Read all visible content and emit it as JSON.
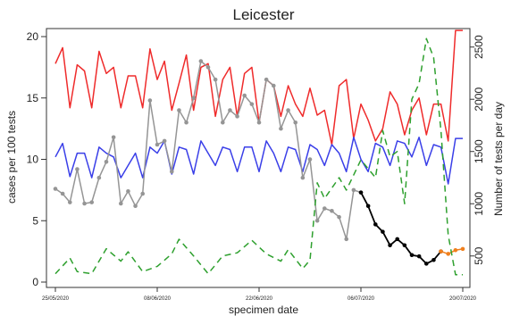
{
  "chart_data": {
    "type": "line",
    "title": "Leicester",
    "xlabel": "specimen date",
    "ylabel_left": "cases per 100 tests",
    "ylabel_right": "Number of tests per day",
    "x_ticks": [
      "25/05/2020",
      "08/06/2020",
      "22/06/2020",
      "06/07/2020",
      "20/07/2020"
    ],
    "x_tick_index": [
      0,
      14,
      28,
      42,
      56
    ],
    "ylim_left": [
      0,
      20
    ],
    "yticks_left": [
      0,
      5,
      10,
      15,
      20
    ],
    "ylim_right": [
      250,
      2600
    ],
    "yticks_right": [
      500,
      1000,
      1500,
      2000,
      2500
    ],
    "grid": false,
    "legend": "none",
    "series": [
      {
        "color": "#ef2b2b",
        "axis": "left",
        "style": "solid",
        "marker": false,
        "x": [
          0,
          1,
          2,
          3,
          4,
          5,
          6,
          7,
          8,
          9,
          10,
          11,
          12,
          13,
          14,
          15,
          16,
          17,
          18,
          19,
          20,
          21,
          22,
          23,
          24,
          25,
          26,
          27,
          28,
          29,
          30,
          31,
          32,
          33,
          34,
          35,
          36,
          37,
          38,
          39,
          40,
          41,
          42,
          43,
          44,
          45,
          46,
          47,
          48,
          49,
          50,
          51,
          52,
          53,
          54,
          55,
          56
        ],
        "y": [
          17.8,
          19.1,
          14.2,
          17.7,
          17.2,
          14.2,
          18.8,
          17.0,
          17.5,
          14.2,
          16.8,
          16.8,
          14.2,
          19.0,
          16.5,
          18.0,
          14.0,
          16.2,
          18.5,
          14.0,
          17.5,
          17.8,
          13.5,
          16.5,
          17.5,
          13.5,
          17.0,
          17.5,
          13.0,
          16.5,
          16.0,
          13.5,
          16.0,
          14.5,
          13.5,
          15.8,
          13.6,
          14.0,
          11.2,
          16.0,
          16.5,
          11.7,
          14.5,
          13.2,
          11.5,
          12.5,
          15.5,
          14.5,
          12.0,
          14.0,
          15.0,
          12.0,
          14.5,
          14.5,
          11.5,
          20.5,
          20.5
        ]
      },
      {
        "color": "#3a3fe8",
        "axis": "left",
        "style": "solid",
        "marker": false,
        "x": [
          0,
          1,
          2,
          3,
          4,
          5,
          6,
          7,
          8,
          9,
          10,
          11,
          12,
          13,
          14,
          15,
          16,
          17,
          18,
          19,
          20,
          21,
          22,
          23,
          24,
          25,
          26,
          27,
          28,
          29,
          30,
          31,
          32,
          33,
          34,
          35,
          36,
          37,
          38,
          39,
          40,
          41,
          42,
          43,
          44,
          45,
          46,
          47,
          48,
          49,
          50,
          51,
          52,
          53,
          54,
          55,
          56
        ],
        "y": [
          10.2,
          11.3,
          8.6,
          10.5,
          10.5,
          8.5,
          11.0,
          10.5,
          10.2,
          8.5,
          9.5,
          10.5,
          8.5,
          11.0,
          10.5,
          11.5,
          8.8,
          11.0,
          10.8,
          8.8,
          11.5,
          10.5,
          9.5,
          11.0,
          10.8,
          9.0,
          11.0,
          11.0,
          9.0,
          11.5,
          10.5,
          9.0,
          11.0,
          10.8,
          9.0,
          11.2,
          10.8,
          9.5,
          11.2,
          10.5,
          9.0,
          11.8,
          10.0,
          9.0,
          11.3,
          11.0,
          9.5,
          11.5,
          11.3,
          10.2,
          11.8,
          9.5,
          11.2,
          11.0,
          8.0,
          11.7,
          11.7
        ]
      },
      {
        "color": "#959595",
        "axis": "left",
        "style": "solid",
        "marker": true,
        "x": [
          0,
          1,
          2,
          3,
          4,
          5,
          6,
          7,
          8,
          9,
          10,
          11,
          12,
          13,
          14,
          15,
          16,
          17,
          18,
          19,
          20,
          21,
          22,
          23,
          24,
          25,
          26,
          27,
          28,
          29,
          30,
          31,
          32,
          33,
          34,
          35,
          36,
          37,
          38,
          39,
          40,
          41,
          42
        ],
        "y": [
          7.6,
          7.2,
          6.5,
          9.2,
          6.4,
          6.5,
          8.5,
          9.8,
          11.8,
          6.4,
          7.4,
          6.2,
          7.2,
          14.8,
          11.2,
          11.5,
          9.0,
          14.0,
          13.0,
          15.0,
          18.0,
          17.5,
          16.5,
          13.0,
          14.0,
          13.5,
          15.2,
          14.5,
          13.0,
          16.5,
          16.0,
          12.5,
          14.0,
          13.0,
          8.5,
          10.0,
          5.0,
          6.0,
          5.8,
          5.3,
          3.5,
          7.5,
          7.3
        ]
      },
      {
        "color": "#000000",
        "axis": "left",
        "style": "solid",
        "marker": true,
        "x": [
          42,
          43,
          44,
          45,
          46,
          47,
          48,
          49,
          50,
          51,
          52,
          53
        ],
        "y": [
          7.3,
          6.2,
          4.7,
          4.1,
          3.0,
          3.5,
          3.0,
          2.2,
          2.1,
          1.5,
          1.8,
          2.5
        ]
      },
      {
        "color": "#f07f1d",
        "axis": "left",
        "style": "solid",
        "marker": true,
        "x": [
          53,
          54,
          55,
          56
        ],
        "y": [
          2.5,
          2.3,
          2.6,
          2.7
        ]
      },
      {
        "color": "#2ea02e",
        "axis": "right",
        "style": "dashed",
        "marker": false,
        "x": [
          0,
          2,
          3,
          5,
          7,
          9,
          10,
          12,
          14,
          16,
          17,
          19,
          21,
          23,
          25,
          27,
          29,
          31,
          32,
          34,
          35,
          36,
          37,
          39,
          40,
          42,
          44,
          45,
          46,
          47,
          48,
          49,
          50,
          51,
          52,
          53,
          54,
          55,
          56
        ],
        "y": [
          330,
          480,
          350,
          330,
          570,
          450,
          540,
          350,
          400,
          520,
          660,
          500,
          330,
          500,
          530,
          650,
          520,
          450,
          560,
          380,
          460,
          1200,
          1050,
          1250,
          1130,
          1420,
          1250,
          1700,
          1450,
          1500,
          1000,
          2000,
          2150,
          2580,
          2400,
          1700,
          700,
          320,
          320
        ]
      }
    ]
  }
}
